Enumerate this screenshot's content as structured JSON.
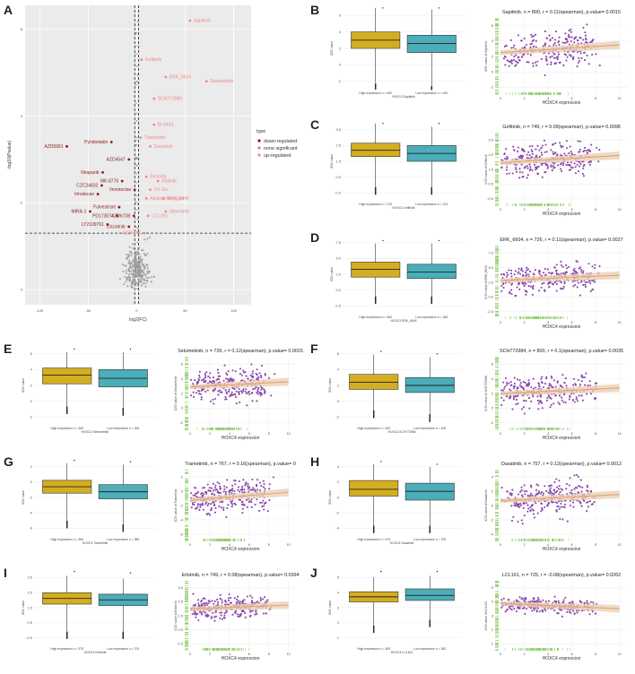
{
  "figure": {
    "volcano": {
      "label": "A",
      "xlabel": "log2(FC)",
      "ylabel": "-log10(Pvalue)",
      "xticks": [
        "-100",
        "-50",
        "0",
        "50",
        "100"
      ],
      "yticks": [
        "0",
        "2",
        "4",
        "6"
      ],
      "legend_title": "type",
      "legend_items": [
        "down-regulated",
        "none significant",
        "up-regulated"
      ],
      "colors": {
        "down": "#8b1a1a",
        "none": "#9a9a9a",
        "up": "#f08a8a"
      },
      "drugs_up": [
        {
          "name": "Sapitinib",
          "fc": 55,
          "p": 6.2
        },
        {
          "name": "Gefitinib",
          "fc": 5,
          "p": 5.3
        },
        {
          "name": "ERK_6604",
          "fc": 30,
          "p": 4.9
        },
        {
          "name": "Selumetinib",
          "fc": 72,
          "p": 4.8
        },
        {
          "name": "SCH772984",
          "fc": 18,
          "p": 4.4
        },
        {
          "name": "BI-6424",
          "fc": 18,
          "p": 3.8
        },
        {
          "name": "Trametinib",
          "fc": 4,
          "p": 3.5
        },
        {
          "name": "Dasatinib",
          "fc": 14,
          "p": 3.3
        },
        {
          "name": "Erlotinib",
          "fc": 10,
          "p": 2.6
        },
        {
          "name": "Afatinib",
          "fc": 22,
          "p": 2.5
        },
        {
          "name": "VX-11e",
          "fc": 14,
          "p": 2.3
        },
        {
          "name": "Afatinib Mesylate",
          "fc": 10,
          "p": 2.1
        },
        {
          "name": "ERK_2440",
          "fc": 28,
          "p": 2.1
        },
        {
          "name": "Ulixertinib",
          "fc": 30,
          "p": 1.8
        },
        {
          "name": "LCL161",
          "fc": 12,
          "p": 1.7
        }
      ],
      "drugs_down": [
        {
          "name": "AZD5991",
          "fc": -72,
          "p": 3.3
        },
        {
          "name": "Pyridostatin",
          "fc": -26,
          "p": 3.4
        },
        {
          "name": "AZD4547",
          "fc": -8,
          "p": 3.0
        },
        {
          "name": "Niraparib",
          "fc": -35,
          "p": 2.7
        },
        {
          "name": "MK-8776",
          "fc": -15,
          "p": 2.5
        },
        {
          "name": "CZC24832",
          "fc": -36,
          "p": 2.4
        },
        {
          "name": "Venotoclax",
          "fc": -2,
          "p": 2.3
        },
        {
          "name": "Irinotecan",
          "fc": -40,
          "p": 2.2
        },
        {
          "name": "Fulvestrant",
          "fc": -18,
          "p": 1.9
        },
        {
          "name": "MIRA-1",
          "fc": -48,
          "p": 1.8
        },
        {
          "name": "PD173074",
          "fc": -20,
          "p": 1.7
        },
        {
          "name": "AZD6738",
          "fc": -3,
          "p": 1.7
        },
        {
          "name": "LY2109761",
          "fc": -30,
          "p": 1.5
        },
        {
          "name": "Crizotinib",
          "fc": -8,
          "p": 1.45
        },
        {
          "name": "AZD6482",
          "fc": 8,
          "p": 1.3
        }
      ]
    },
    "panels": [
      {
        "label": "B",
        "drug": "Sapitinib",
        "title": "Sapitinib, n = 800, r = 0.11(spearman), p.value= 0.0015",
        "high_label": "High expression n = 400",
        "low_label": "Low expression n = 400",
        "box_xlabel": "HOXC4 Sapitinib",
        "box_ylabel": "IC50 value",
        "scatter_ylabel": "IC50 value of Sapitinib",
        "scatter_xlabel": "HOXC4 expression",
        "yticks": [
          "-2",
          "0",
          "2",
          "4",
          "6"
        ],
        "xticks": [
          "0",
          "2",
          "4",
          "6",
          "8",
          "10"
        ],
        "high": {
          "min": -1.2,
          "q1": 3.0,
          "med": 4.0,
          "q3": 5.0,
          "max": 7.9
        },
        "low": {
          "min": -1.5,
          "q1": 2.5,
          "med": 3.6,
          "q3": 4.6,
          "max": 7.7
        },
        "ymin": -2,
        "ymax": 8,
        "slope": 0.1,
        "intercept": 3.2
      },
      {
        "label": "C",
        "drug": "Gefitinib",
        "title": "Gefitinib, n = 749, r = 0.09(spearman), p.value= 0.0098",
        "high_label": "High expression n = 375",
        "low_label": "Low expression n = 374",
        "box_xlabel": "HOXC4 Gefitinib",
        "box_ylabel": "IC50 value",
        "scatter_ylabel": "IC50 value of Gefitinib",
        "scatter_xlabel": "HOXC4 expression",
        "yticks": [
          "-0.5",
          "0.5",
          "1.5",
          "2.5",
          "3.5"
        ],
        "xticks": [
          "0",
          "2",
          "4",
          "6",
          "8",
          "10"
        ],
        "high": {
          "min": 0.2,
          "q1": 2.1,
          "med": 2.5,
          "q3": 2.95,
          "max": 4.2
        },
        "low": {
          "min": 0.2,
          "q1": 1.8,
          "med": 2.3,
          "q3": 2.8,
          "max": 4.0
        },
        "ymin": -0.7,
        "ymax": 4.3,
        "slope": 0.05,
        "intercept": 2.2
      },
      {
        "label": "D",
        "drug": "ERK_6604",
        "title": "ERK_6604, n = 726, r = 0.11(spearman), p.value= 0.0027",
        "high_label": "High expression n = 363",
        "low_label": "Low expression n = 363",
        "box_xlabel": "HOXC4 ERK_6604",
        "box_ylabel": "IC50 value",
        "scatter_ylabel": "IC50 value of ERK_6604",
        "scatter_xlabel": "HOXC4 expression",
        "yticks": [
          "-2.5",
          "0.0",
          "2.5",
          "5.0",
          "7.5"
        ],
        "xticks": [
          "0",
          "2",
          "4",
          "6",
          "8",
          "10"
        ],
        "high": {
          "min": -0.3,
          "q1": 2.3,
          "med": 3.4,
          "q3": 4.4,
          "max": 7.0
        },
        "low": {
          "min": -0.3,
          "q1": 2.1,
          "med": 3.0,
          "q3": 4.1,
          "max": 7.0
        },
        "ymin": -2.8,
        "ymax": 8.2,
        "slope": 0.08,
        "intercept": 2.9
      },
      {
        "label": "E",
        "drug": "Selumetinib",
        "title": "Selumetinib, n = 726, r = 0.12(spearman), p.value= 0.0015",
        "high_label": "High expression n = 363",
        "low_label": "Low expression n = 363",
        "box_xlabel": "HOXC4 Selumetinib",
        "box_ylabel": "IC50 value",
        "scatter_ylabel": "IC50 value of Selumetinib",
        "scatter_xlabel": "HOXC4 expression",
        "yticks": [
          "-2",
          "0",
          "2",
          "4",
          "6"
        ],
        "xticks": [
          "0",
          "2",
          "4",
          "6",
          "8",
          "10"
        ],
        "high": {
          "min": 0.2,
          "q1": 3.0,
          "med": 4.1,
          "q3": 5.0,
          "max": 7.0
        },
        "low": {
          "min": 0.0,
          "q1": 2.6,
          "med": 3.7,
          "q3": 4.8,
          "max": 7.0
        },
        "ymin": -2.2,
        "ymax": 7.8,
        "slope": 0.07,
        "intercept": 3.5
      },
      {
        "label": "F",
        "drug": "SCH772984",
        "title": "SCH772984, n = 800, r = 0.1(spearman), p.value= 0.0035",
        "high_label": "High expression n = 400",
        "low_label": "Low expression n = 400",
        "box_xlabel": "HOXC4 SCH772984",
        "box_ylabel": "IC50 value",
        "scatter_ylabel": "IC50 value of SCH772984",
        "scatter_xlabel": "HOXC4 expression",
        "yticks": [
          "-2",
          "0",
          "2",
          "4",
          "6"
        ],
        "xticks": [
          "0",
          "2",
          "4",
          "6",
          "8",
          "10"
        ],
        "high": {
          "min": -0.5,
          "q1": 2.1,
          "med": 3.0,
          "q3": 4.0,
          "max": 6.5
        },
        "low": {
          "min": -1.0,
          "q1": 1.7,
          "med": 2.6,
          "q3": 3.6,
          "max": 6.2
        },
        "ymin": -2.4,
        "ymax": 7.6,
        "slope": 0.08,
        "intercept": 2.3
      },
      {
        "label": "G",
        "drug": "Trametinib",
        "title": "Trametinib, n = 767, r = 0.16(spearman), p.value= 0",
        "high_label": "High expression n = 384",
        "low_label": "Low expression n = 383",
        "box_xlabel": "HOXC4 Trametinib",
        "box_ylabel": "IC50 value",
        "scatter_ylabel": "IC50 value of Trametinib",
        "scatter_xlabel": "HOXC4 expression",
        "yticks": [
          "-6",
          "-4",
          "-2",
          "0",
          "2"
        ],
        "xticks": [
          "0",
          "2",
          "4",
          "6",
          "8",
          "10"
        ],
        "high": {
          "min": -5.0,
          "q1": -1.2,
          "med": -0.3,
          "q3": 0.6,
          "max": 3.0
        },
        "low": {
          "min": -5.5,
          "q1": -2.0,
          "med": -1.0,
          "q3": 0.0,
          "max": 2.8
        },
        "ymin": -7.2,
        "ymax": 3.6,
        "slope": 0.12,
        "intercept": -1.2
      },
      {
        "label": "H",
        "drug": "Dasatinib",
        "title": "Dasatinib, n = 757, r = 0.12(spearman), p.value= 0.0012",
        "high_label": "High expression n = 379",
        "low_label": "Low expression n = 378",
        "box_xlabel": "HOXC4 Dasatinib",
        "box_ylabel": "IC50 value",
        "scatter_ylabel": "IC50 value of Dasatinib",
        "scatter_xlabel": "HOXC4 expression",
        "yticks": [
          "-4",
          "-2",
          "0",
          "2",
          "4"
        ],
        "xticks": [
          "0",
          "2",
          "4",
          "6",
          "8",
          "10"
        ],
        "high": {
          "min": -4.0,
          "q1": 0.3,
          "med": 1.3,
          "q3": 2.6,
          "max": 5.0
        },
        "low": {
          "min": -4.0,
          "q1": -0.3,
          "med": 1.0,
          "q3": 2.2,
          "max": 4.6
        },
        "ymin": -5.6,
        "ymax": 5.8,
        "slope": 0.1,
        "intercept": 0.5
      },
      {
        "label": "I",
        "drug": "Erlotinib",
        "title": "Erlotinib, n = 749, r = 0.08(spearman), p.value= 0.0394",
        "high_label": "High expression n = 375",
        "low_label": "Low expression n = 374",
        "box_xlabel": "HOXC4 Erlotinib",
        "box_ylabel": "IC50 value",
        "scatter_ylabel": "IC50 value of Erlotinib",
        "scatter_xlabel": "HOXC4 expression",
        "yticks": [
          "-0.5",
          "0.5",
          "1.5",
          "2.5",
          "3.5"
        ],
        "xticks": [
          "0",
          "2",
          "4",
          "6",
          "8",
          "10"
        ],
        "high": {
          "min": 0.3,
          "q1": 2.2,
          "med": 2.6,
          "q3": 3.0,
          "max": 4.2
        },
        "low": {
          "min": 0.3,
          "q1": 2.1,
          "med": 2.5,
          "q3": 2.9,
          "max": 4.0
        },
        "ymin": -0.7,
        "ymax": 4.6,
        "slope": 0.03,
        "intercept": 2.45
      },
      {
        "label": "J",
        "drug": "LCL161",
        "title": "LCL161, n = 725, r = -0.08(spearman), p.value= 0.0262",
        "high_label": "High expression n = 363",
        "low_label": "Low expression n = 362",
        "box_xlabel": "HOXC4 LCL161",
        "box_ylabel": "IC50 value",
        "scatter_ylabel": "IC50 value of LCL161",
        "scatter_xlabel": "HOXC4 expression",
        "yticks": [
          "1",
          "2",
          "3",
          "4",
          "5"
        ],
        "xticks": [
          "0",
          "2",
          "4",
          "6",
          "8",
          "10"
        ],
        "high": {
          "min": 2.2,
          "q1": 3.8,
          "med": 4.15,
          "q3": 4.5,
          "max": 5.5
        },
        "low": {
          "min": 2.6,
          "q1": 3.9,
          "med": 4.25,
          "q3": 4.7,
          "max": 5.6
        },
        "ymin": 0.8,
        "ymax": 6.0,
        "slope": -0.04,
        "intercept": 4.3
      }
    ],
    "colors": {
      "high_box": "#d4ae21",
      "low_box": "#4baeb8",
      "dots": "#8844aa",
      "fit": "#e8a070",
      "rug": "#8fcd6a",
      "grid": "#ececec"
    }
  }
}
